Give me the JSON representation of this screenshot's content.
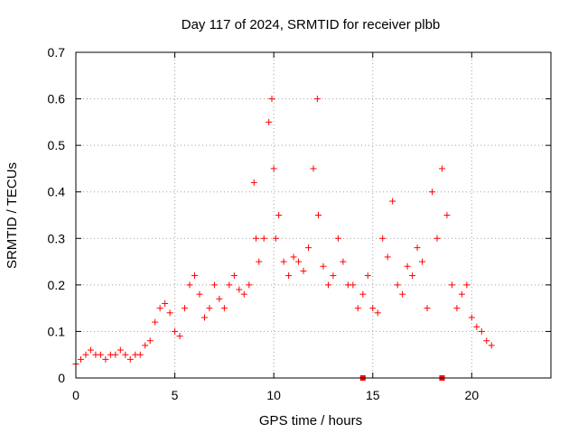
{
  "chart_data": {
    "type": "scatter",
    "title": "Day 117 of 2024, SRMTID for receiver plbb",
    "xlabel": "GPS time / hours",
    "ylabel": "SRMTID / TECUs",
    "xlim": [
      0,
      24
    ],
    "ylim": [
      0,
      0.7
    ],
    "x_ticks": [
      0,
      5,
      10,
      15,
      20
    ],
    "y_ticks": [
      0,
      0.1,
      0.2,
      0.3,
      0.4,
      0.5,
      0.6,
      0.7
    ],
    "x_tick_labels": [
      "0",
      "5",
      "10",
      "15",
      "20"
    ],
    "y_tick_labels": [
      "0",
      "0.1",
      "0.2",
      "0.3",
      "0.4",
      "0.5",
      "0.6",
      "0.7"
    ],
    "grid": true,
    "marker": "+",
    "color": "#ff0000",
    "zero_markers": [
      14.5,
      18.5
    ],
    "series": [
      {
        "name": "SRMTID",
        "x": [
          0.0,
          0.25,
          0.5,
          0.75,
          1.0,
          1.25,
          1.5,
          1.75,
          2.0,
          2.25,
          2.5,
          2.75,
          3.0,
          3.25,
          3.5,
          3.75,
          4.0,
          4.25,
          4.5,
          4.75,
          5.0,
          5.25,
          5.5,
          5.75,
          6.0,
          6.25,
          6.5,
          6.75,
          7.0,
          7.25,
          7.5,
          7.75,
          8.0,
          8.25,
          8.5,
          8.75,
          9.0,
          9.1,
          9.25,
          9.5,
          9.75,
          9.9,
          10.0,
          10.1,
          10.25,
          10.5,
          10.75,
          11.0,
          11.25,
          11.5,
          11.75,
          12.0,
          12.2,
          12.25,
          12.5,
          12.75,
          13.0,
          13.25,
          13.5,
          13.75,
          14.0,
          14.25,
          14.5,
          14.75,
          15.0,
          15.25,
          15.5,
          15.75,
          16.0,
          16.25,
          16.5,
          16.75,
          17.0,
          17.25,
          17.5,
          17.75,
          18.0,
          18.25,
          18.5,
          18.75,
          19.0,
          19.25,
          19.5,
          19.75,
          20.0,
          20.25,
          20.5,
          20.75,
          21.0
        ],
        "y": [
          0.03,
          0.04,
          0.05,
          0.06,
          0.05,
          0.05,
          0.04,
          0.05,
          0.05,
          0.06,
          0.05,
          0.04,
          0.05,
          0.05,
          0.07,
          0.08,
          0.12,
          0.15,
          0.16,
          0.14,
          0.1,
          0.09,
          0.15,
          0.2,
          0.22,
          0.18,
          0.13,
          0.15,
          0.2,
          0.17,
          0.15,
          0.2,
          0.22,
          0.19,
          0.18,
          0.2,
          0.42,
          0.3,
          0.25,
          0.3,
          0.55,
          0.6,
          0.45,
          0.3,
          0.35,
          0.25,
          0.22,
          0.26,
          0.25,
          0.23,
          0.28,
          0.45,
          0.6,
          0.35,
          0.24,
          0.2,
          0.22,
          0.3,
          0.25,
          0.2,
          0.2,
          0.15,
          0.18,
          0.22,
          0.15,
          0.14,
          0.3,
          0.26,
          0.38,
          0.2,
          0.18,
          0.24,
          0.22,
          0.28,
          0.25,
          0.15,
          0.4,
          0.3,
          0.45,
          0.35,
          0.2,
          0.15,
          0.18,
          0.2,
          0.13,
          0.11,
          0.1,
          0.08,
          0.07
        ]
      }
    ]
  }
}
